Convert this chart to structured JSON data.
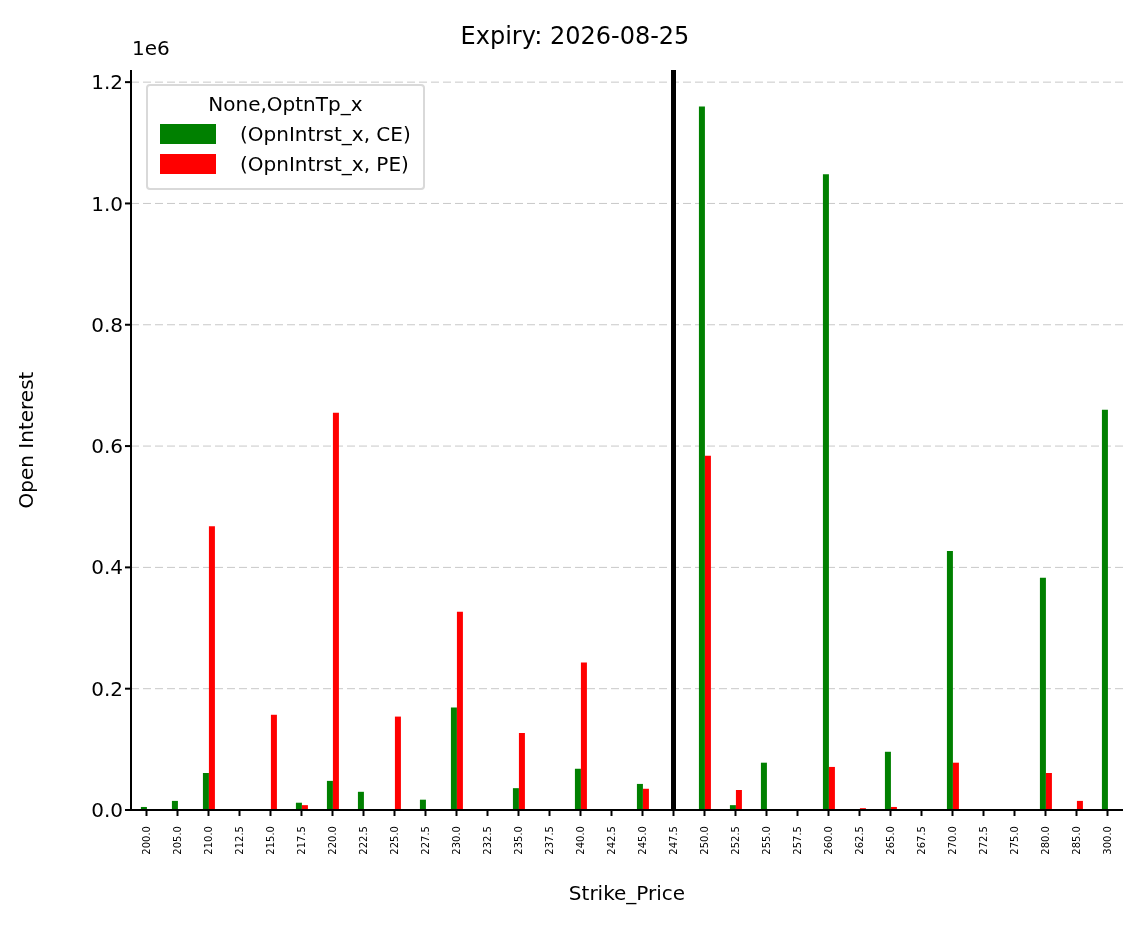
{
  "chart_data": {
    "type": "bar",
    "title": "Expiry: 2026-08-25",
    "xlabel": "Strike_Price",
    "ylabel": "Open Interest",
    "legend_title": "None,OptnTp_x",
    "annotations": [
      "1e6"
    ],
    "categories": [
      "200.0",
      "205.0",
      "210.0",
      "212.5",
      "215.0",
      "217.5",
      "220.0",
      "222.5",
      "225.0",
      "227.5",
      "230.0",
      "232.5",
      "235.0",
      "237.5",
      "240.0",
      "242.5",
      "245.0",
      "247.5",
      "250.0",
      "252.5",
      "255.0",
      "257.5",
      "260.0",
      "262.5",
      "265.0",
      "267.5",
      "270.0",
      "272.5",
      "275.0",
      "280.0",
      "285.0",
      "300.0"
    ],
    "series": [
      {
        "name": "(OpnIntrst_x, CE)",
        "color": "#008000",
        "values": [
          0.005,
          0.015,
          0.061,
          0,
          0,
          0.012,
          0.048,
          0.03,
          0,
          0.017,
          0.169,
          0,
          0.036,
          0,
          0.068,
          0,
          0.043,
          null,
          1.16,
          0.008,
          0.078,
          0,
          1.048,
          0,
          0.096,
          0,
          0.427,
          0,
          0,
          0.383,
          0,
          0.66
        ]
      },
      {
        "name": "(OpnIntrst_x, PE)",
        "color": "#ff0000",
        "values": [
          0,
          0,
          0.468,
          0,
          0.157,
          0.008,
          0.655,
          0,
          0.154,
          0,
          0.327,
          0,
          0.127,
          0,
          0.243,
          0,
          0.035,
          0,
          0.584,
          0.033,
          0,
          0,
          0.071,
          0.003,
          0.005,
          0,
          0.078,
          0,
          0,
          0.061,
          0.015,
          0
        ]
      }
    ],
    "ylim": [
      0,
      1.22
    ],
    "yticks": [
      {
        "value": 0,
        "label": "0.0"
      },
      {
        "value": 0.2,
        "label": "0.2"
      },
      {
        "value": 0.4,
        "label": "0.4"
      },
      {
        "value": 0.6,
        "label": "0.6"
      },
      {
        "value": 0.8,
        "label": "0.8"
      },
      {
        "value": 1.0,
        "label": "1.0"
      },
      {
        "value": 1.2,
        "label": "1.2"
      }
    ],
    "ref_lines": [
      {
        "axis": "x",
        "value": "247.5",
        "color": "#000000",
        "line_style": "solid"
      }
    ],
    "grid": "y",
    "legend": "top left"
  }
}
